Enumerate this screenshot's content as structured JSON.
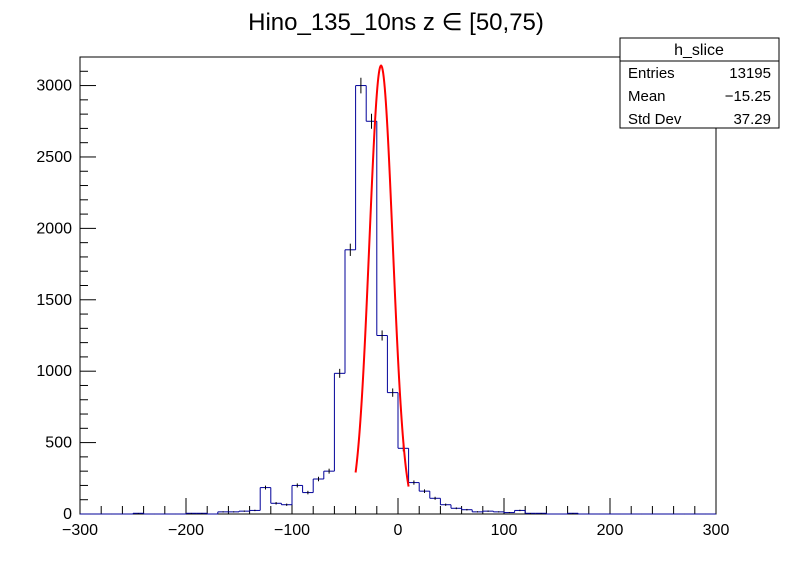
{
  "chart_data": {
    "type": "histogram",
    "title": "Hino_135_10ns z  ∈ [50,75)",
    "xlabel": "",
    "ylabel": "",
    "xlim": [
      -300,
      300
    ],
    "ylim": [
      0,
      3200
    ],
    "x_ticks": [
      -300,
      -200,
      -100,
      0,
      100,
      200,
      300
    ],
    "y_ticks": [
      0,
      500,
      1000,
      1500,
      2000,
      2500,
      3000
    ],
    "x_tick_labels": [
      "−300",
      "−200",
      "−100",
      "0",
      "100",
      "200",
      "300"
    ],
    "y_tick_labels": [
      "0",
      "500",
      "1000",
      "1500",
      "2000",
      "2500",
      "3000"
    ],
    "bin_width": 10,
    "bins": [
      {
        "x": -300,
        "y": 0
      },
      {
        "x": -290,
        "y": 0
      },
      {
        "x": -280,
        "y": 0
      },
      {
        "x": -270,
        "y": 0
      },
      {
        "x": -260,
        "y": 0
      },
      {
        "x": -250,
        "y": 5
      },
      {
        "x": -240,
        "y": 0
      },
      {
        "x": -230,
        "y": 0
      },
      {
        "x": -220,
        "y": 0
      },
      {
        "x": -210,
        "y": 0
      },
      {
        "x": -200,
        "y": 5
      },
      {
        "x": -190,
        "y": 5
      },
      {
        "x": -180,
        "y": 0
      },
      {
        "x": -170,
        "y": 15
      },
      {
        "x": -160,
        "y": 15
      },
      {
        "x": -150,
        "y": 20
      },
      {
        "x": -140,
        "y": 25
      },
      {
        "x": -130,
        "y": 185
      },
      {
        "x": -120,
        "y": 75
      },
      {
        "x": -110,
        "y": 65
      },
      {
        "x": -100,
        "y": 200
      },
      {
        "x": -90,
        "y": 150
      },
      {
        "x": -80,
        "y": 245
      },
      {
        "x": -70,
        "y": 300
      },
      {
        "x": -60,
        "y": 985
      },
      {
        "x": -50,
        "y": 1850
      },
      {
        "x": -40,
        "y": 3000
      },
      {
        "x": -30,
        "y": 2750
      },
      {
        "x": -20,
        "y": 1250
      },
      {
        "x": -10,
        "y": 850
      },
      {
        "x": 0,
        "y": 460
      },
      {
        "x": 10,
        "y": 220
      },
      {
        "x": 20,
        "y": 160
      },
      {
        "x": 30,
        "y": 110
      },
      {
        "x": 40,
        "y": 65
      },
      {
        "x": 50,
        "y": 40
      },
      {
        "x": 60,
        "y": 30
      },
      {
        "x": 70,
        "y": 15
      },
      {
        "x": 80,
        "y": 20
      },
      {
        "x": 90,
        "y": 15
      },
      {
        "x": 100,
        "y": 10
      },
      {
        "x": 110,
        "y": 25
      },
      {
        "x": 120,
        "y": 5
      },
      {
        "x": 130,
        "y": 5
      },
      {
        "x": 140,
        "y": 0
      },
      {
        "x": 150,
        "y": 0
      },
      {
        "x": 160,
        "y": 5
      },
      {
        "x": 170,
        "y": 0
      },
      {
        "x": 180,
        "y": 0
      },
      {
        "x": 190,
        "y": 0
      },
      {
        "x": 200,
        "y": 0
      },
      {
        "x": 210,
        "y": 0
      },
      {
        "x": 220,
        "y": 0
      },
      {
        "x": 230,
        "y": 0
      },
      {
        "x": 240,
        "y": 0
      },
      {
        "x": 250,
        "y": 0
      },
      {
        "x": 260,
        "y": 0
      },
      {
        "x": 270,
        "y": 0
      },
      {
        "x": 280,
        "y": 0
      },
      {
        "x": 290,
        "y": 0
      }
    ],
    "fit": {
      "type": "gaus",
      "constant": 3140,
      "mean": -16,
      "sigma": 11,
      "range": [
        -40,
        10
      ],
      "color": "#ff0000"
    },
    "line_color": "#000099",
    "stats": {
      "name": "h_slice",
      "entries_label": "Entries",
      "entries": "13195",
      "mean_label": "Mean",
      "mean": "−15.25",
      "stddev_label": "Std Dev",
      "stddev": "37.29"
    },
    "grid": false,
    "legend_position": "top-right"
  }
}
